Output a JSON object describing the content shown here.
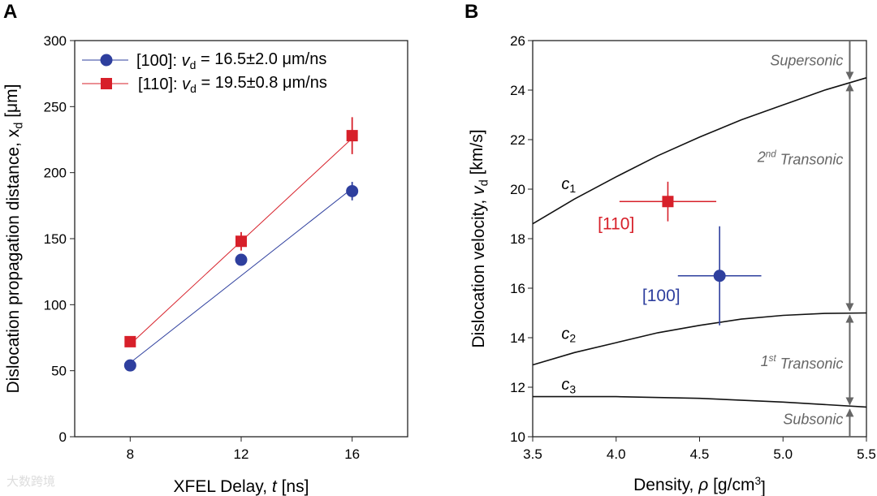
{
  "watermark": "大数跨境",
  "chart_data": [
    {
      "panel_label": "A",
      "type": "scatter",
      "xlabel": "XFEL Delay, ",
      "xlabel_var": "t",
      "xlabel_unit": " [ns]",
      "ylabel": "Dislocation propagation distance, x",
      "ylabel_sub": "d",
      "ylabel_unit": " [μm]",
      "xlim": [
        6,
        18
      ],
      "ylim": [
        0,
        300
      ],
      "xticks": [
        8,
        12,
        16
      ],
      "yticks": [
        0,
        50,
        100,
        150,
        200,
        250,
        300
      ],
      "legend_position": "top-left",
      "series": [
        {
          "name": "[100]: ",
          "legend_var": "v",
          "legend_sub": "d",
          "legend_rest": " = 16.5±2.0 μm/ns",
          "color": "#2e3f9e",
          "marker": "circle",
          "x": [
            8,
            12,
            16
          ],
          "y": [
            54,
            134,
            186
          ],
          "yerr": [
            2,
            3,
            7
          ],
          "fit": [
            [
              8,
              56
            ],
            [
              16,
              188
            ]
          ]
        },
        {
          "name": "[110]: ",
          "legend_var": "v",
          "legend_sub": "d",
          "legend_rest": " = 19.5±0.8 μm/ns",
          "color": "#d7202a",
          "marker": "square",
          "x": [
            8,
            12,
            16
          ],
          "y": [
            72,
            148,
            228
          ],
          "yerr": [
            4,
            7,
            14
          ],
          "fit": [
            [
              8,
              70
            ],
            [
              16,
              226
            ]
          ]
        }
      ]
    },
    {
      "panel_label": "B",
      "type": "line",
      "xlabel": "Density, ",
      "xlabel_var": "ρ",
      "xlabel_unit": " [g/cm",
      "xlabel_sup": "3",
      "xlabel_end": "]",
      "ylabel": "Dislocation velocity, ",
      "ylabel_var": "v",
      "ylabel_sub": "d",
      "ylabel_unit": " [km/s]",
      "xlim": [
        3.5,
        5.5
      ],
      "ylim": [
        10,
        26
      ],
      "xticks": [
        "3.5",
        "4.0",
        "4.5",
        "5.0",
        "5.5"
      ],
      "yticks": [
        10,
        12,
        14,
        16,
        18,
        20,
        22,
        24,
        26
      ],
      "curves": [
        {
          "name": "c",
          "sub": "1",
          "label_at": [
            3.75,
            20.0
          ],
          "x": [
            3.5,
            3.75,
            4.0,
            4.25,
            4.5,
            4.75,
            5.0,
            5.25,
            5.5
          ],
          "y": [
            18.6,
            19.6,
            20.5,
            21.35,
            22.1,
            22.8,
            23.4,
            24.0,
            24.5
          ]
        },
        {
          "name": "c",
          "sub": "2",
          "label_at": [
            3.75,
            13.95
          ],
          "x": [
            3.5,
            3.75,
            4.0,
            4.25,
            4.5,
            4.75,
            5.0,
            5.25,
            5.5
          ],
          "y": [
            12.9,
            13.4,
            13.8,
            14.2,
            14.5,
            14.75,
            14.9,
            14.98,
            15.0
          ]
        },
        {
          "name": "c",
          "sub": "3",
          "label_at": [
            3.75,
            11.9
          ],
          "x": [
            3.5,
            4.0,
            4.5,
            5.0,
            5.5
          ],
          "y": [
            11.62,
            11.62,
            11.55,
            11.4,
            11.2
          ]
        }
      ],
      "points": [
        {
          "label": "[110]",
          "color": "#d7202a",
          "marker": "square",
          "x": 4.31,
          "y": 19.5,
          "xerr": [
            4.02,
            4.6
          ],
          "yerr": [
            18.7,
            20.3
          ],
          "label_at": [
            4.0,
            18.6
          ]
        },
        {
          "label": "[100]",
          "color": "#2e3f9e",
          "marker": "circle",
          "x": 4.62,
          "y": 16.5,
          "xerr": [
            4.37,
            4.87
          ],
          "yerr": [
            14.5,
            18.5
          ],
          "label_at": [
            4.27,
            15.7
          ]
        }
      ],
      "regions": [
        {
          "label": "Supersonic",
          "sup": "",
          "rest": "",
          "y": 25.2
        },
        {
          "label": "2",
          "sup": "nd",
          "rest": " Transonic",
          "y": 21.3
        },
        {
          "label": "1",
          "sup": "st",
          "rest": " Transonic",
          "y": 13.05
        },
        {
          "label": "Subsonic",
          "sup": "",
          "rest": "",
          "y": 10.7
        }
      ],
      "region_arrow_x": 5.4,
      "region_color": "#666666"
    }
  ]
}
